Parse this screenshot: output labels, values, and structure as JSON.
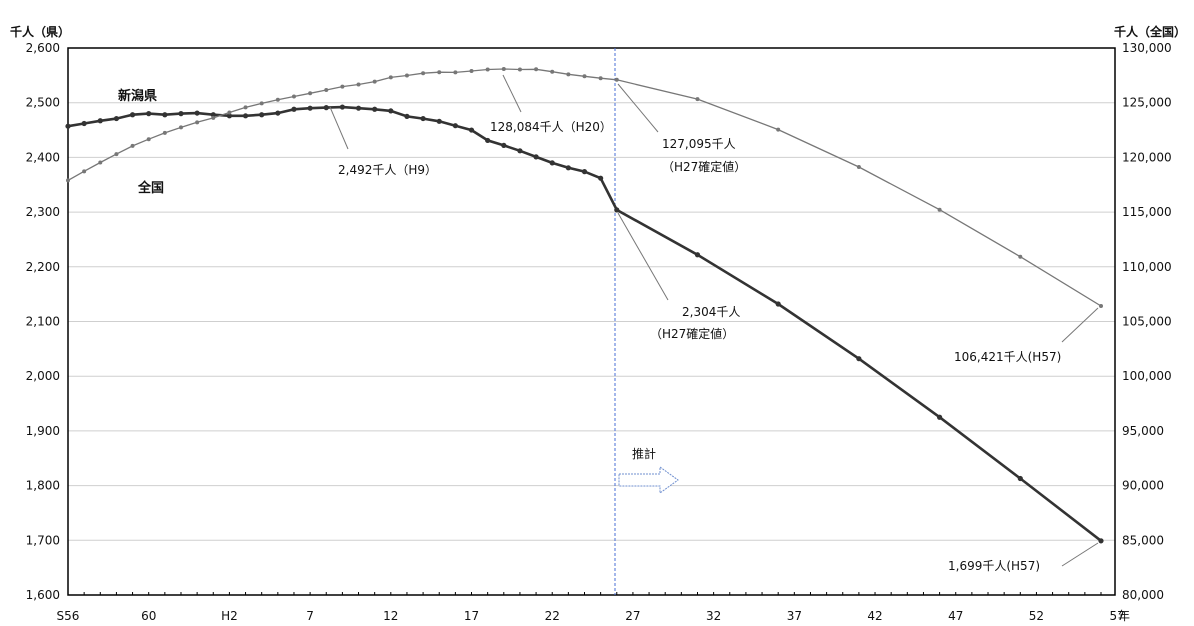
{
  "chart_data": {
    "type": "line",
    "left_axis_unit": "千人（県）",
    "right_axis_unit": "千人（全国）",
    "year_marker": "年",
    "x_tick_labels": [
      "S56",
      "60",
      "H2",
      "7",
      "12",
      "17",
      "22",
      "27",
      "32",
      "37",
      "42",
      "47",
      "52",
      "57"
    ],
    "ylim_left": [
      1600,
      2600
    ],
    "ylim_right": [
      80000,
      130000
    ],
    "left_ticks": [
      "1,600",
      "1,700",
      "1,800",
      "1,900",
      "2,000",
      "2,100",
      "2,200",
      "2,300",
      "2,400",
      "2,500",
      "2,600"
    ],
    "right_ticks": [
      "80,000",
      "85,000",
      "90,000",
      "95,000",
      "100,000",
      "105,000",
      "110,000",
      "115,000",
      "120,000",
      "125,000",
      "130,000"
    ],
    "projection_start": "27",
    "projection_label": "推計",
    "series": [
      {
        "name": "新潟県",
        "axis": "left",
        "x": [
          1981,
          1982,
          1983,
          1984,
          1985,
          1986,
          1987,
          1988,
          1989,
          1990,
          1991,
          1992,
          1993,
          1994,
          1995,
          1996,
          1997,
          1998,
          1999,
          2000,
          2001,
          2002,
          2003,
          2004,
          2005,
          2006,
          2007,
          2008,
          2009,
          2010,
          2011,
          2012,
          2013,
          2014,
          2015,
          2020,
          2025,
          2030,
          2035,
          2040,
          2045
        ],
        "values": [
          2457,
          2462,
          2467,
          2471,
          2478,
          2480,
          2478,
          2480,
          2481,
          2478,
          2476,
          2476,
          2478,
          2481,
          2488,
          2490,
          2491,
          2492,
          2490,
          2488,
          2485,
          2475,
          2471,
          2466,
          2458,
          2450,
          2431,
          2422,
          2412,
          2401,
          2390,
          2381,
          2374,
          2362,
          2304,
          2222,
          2132,
          2032,
          1925,
          1813,
          1699
        ],
        "color": "#333333"
      },
      {
        "name": "全国",
        "axis": "right",
        "x": [
          1981,
          1982,
          1983,
          1984,
          1985,
          1986,
          1987,
          1988,
          1989,
          1990,
          1991,
          1992,
          1993,
          1994,
          1995,
          1996,
          1997,
          1998,
          1999,
          2000,
          2001,
          2002,
          2003,
          2004,
          2005,
          2006,
          2007,
          2008,
          2009,
          2010,
          2011,
          2012,
          2013,
          2014,
          2015,
          2020,
          2025,
          2030,
          2035,
          2040,
          2045
        ],
        "values": [
          117902,
          118728,
          119536,
          120305,
          121049,
          121660,
          122239,
          122745,
          123205,
          123611,
          124101,
          124567,
          124938,
          125265,
          125570,
          125859,
          126157,
          126472,
          126667,
          126926,
          127316,
          127486,
          127694,
          127787,
          127768,
          127901,
          128033,
          128084,
          128032,
          128057,
          127834,
          127593,
          127414,
          127237,
          127095,
          125325,
          122544,
          119125,
          115216,
          110919,
          106421
        ],
        "color": "#777777"
      }
    ],
    "annotations": [
      {
        "text": "2,492千人（H9）"
      },
      {
        "text": "128,084千人（H20）"
      },
      {
        "text": "127,095千人",
        "text2": "（H27確定値）"
      },
      {
        "text": "2,304千人",
        "text2": "（H27確定値）"
      },
      {
        "text": "106,421千人(H57)"
      },
      {
        "text": "1,699千人(H57)"
      }
    ]
  }
}
